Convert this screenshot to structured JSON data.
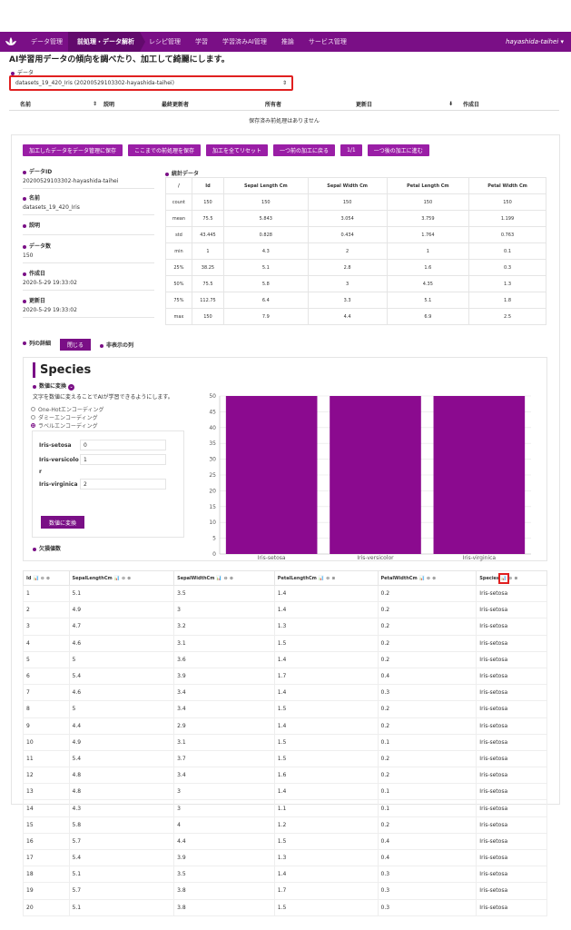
{
  "nav": {
    "items": [
      "データ管理",
      "前処理・データ解析",
      "レシピ管理",
      "学習",
      "学習済みAI管理",
      "推論",
      "サービス管理"
    ],
    "active_index": 1,
    "user": "hayashida-taihei",
    "brand_color": "#7a0f86"
  },
  "page": {
    "subtitle": "AI学習用データの傾向を調べたり、加工して綺麗にします。"
  },
  "data_select": {
    "label": "データ",
    "value": "datasets_19_420_Iris (20200529103302-hayashida-taihei)"
  },
  "saved_table": {
    "headers": [
      "名前",
      "説明",
      "最終更新者",
      "所有者",
      "更新日",
      "作成日"
    ],
    "empty_message": "保存済み前処理はありません"
  },
  "buttons": [
    "加工したデータをデータ管理に保存",
    "ここまでの前処理を保存",
    "加工を全てリセット",
    "一つ前の加工に戻る",
    "1/1",
    "一つ後の加工に進む"
  ],
  "meta": [
    {
      "k": "データID",
      "v": "20200529103302-hayashida-taihei"
    },
    {
      "k": "名前",
      "v": "datasets_19_420_Iris"
    },
    {
      "k": "説明",
      "v": ""
    },
    {
      "k": "データ数",
      "v": "150"
    },
    {
      "k": "作成日",
      "v": "2020-5-29 19:33:02"
    },
    {
      "k": "更新日",
      "v": "2020-5-29 19:33:02"
    }
  ],
  "stats": {
    "title": "統計データ",
    "headers": [
      "/",
      "Id",
      "Sepal Length Cm",
      "Sepal Width Cm",
      "Petal Length Cm",
      "Petal Width Cm"
    ],
    "rows": [
      [
        "count",
        "150",
        "150",
        "150",
        "150",
        "150"
      ],
      [
        "mean",
        "75.5",
        "5.843",
        "3.054",
        "3.759",
        "1.199"
      ],
      [
        "std",
        "43.445",
        "0.828",
        "0.434",
        "1.764",
        "0.763"
      ],
      [
        "min",
        "1",
        "4.3",
        "2",
        "1",
        "0.1"
      ],
      [
        "25%",
        "38.25",
        "5.1",
        "2.8",
        "1.6",
        "0.3"
      ],
      [
        "50%",
        "75.5",
        "5.8",
        "3",
        "4.35",
        "1.3"
      ],
      [
        "75%",
        "112.75",
        "6.4",
        "3.3",
        "5.1",
        "1.8"
      ],
      [
        "max",
        "150",
        "7.9",
        "4.4",
        "6.9",
        "2.5"
      ]
    ]
  },
  "column_detail": {
    "label": "列の詳細",
    "close": "閉じる",
    "hidden_label": "非表示の列"
  },
  "species": {
    "title": "Species",
    "conv_label": "数値に変換",
    "conv_desc": "文字を数値に変えることでAIが学習できるようにします。",
    "options": [
      "One-Hotエンコーディング",
      "ダミーエンコーディング",
      "ラベルエンコーディング"
    ],
    "selected_option": 2,
    "mapping": [
      {
        "name": "Iris-setosa",
        "value": "0"
      },
      {
        "name": "Iris-versicolor",
        "value": "1"
      },
      {
        "name": "Iris-virginica",
        "value": "2"
      }
    ],
    "convert_button": "数値に変換",
    "missing_label": "欠損値数"
  },
  "chart_data": {
    "type": "bar",
    "categories": [
      "Iris-setosa",
      "Iris-versicolor",
      "Iris-virginica"
    ],
    "values": [
      50,
      50,
      50
    ],
    "ylim": [
      0,
      50
    ],
    "yticks": [
      0,
      5,
      10,
      15,
      20,
      25,
      30,
      35,
      40,
      45,
      50
    ],
    "color": "#8b0a8f",
    "grid": true
  },
  "data_table": {
    "headers": [
      "Id",
      "SepalLengthCm",
      "SepalWidthCm",
      "PetalLengthCm",
      "PetalWidthCm",
      "Species"
    ],
    "rows": [
      [
        "1",
        "5.1",
        "3.5",
        "1.4",
        "0.2",
        "Iris-setosa"
      ],
      [
        "2",
        "4.9",
        "3",
        "1.4",
        "0.2",
        "Iris-setosa"
      ],
      [
        "3",
        "4.7",
        "3.2",
        "1.3",
        "0.2",
        "Iris-setosa"
      ],
      [
        "4",
        "4.6",
        "3.1",
        "1.5",
        "0.2",
        "Iris-setosa"
      ],
      [
        "5",
        "5",
        "3.6",
        "1.4",
        "0.2",
        "Iris-setosa"
      ],
      [
        "6",
        "5.4",
        "3.9",
        "1.7",
        "0.4",
        "Iris-setosa"
      ],
      [
        "7",
        "4.6",
        "3.4",
        "1.4",
        "0.3",
        "Iris-setosa"
      ],
      [
        "8",
        "5",
        "3.4",
        "1.5",
        "0.2",
        "Iris-setosa"
      ],
      [
        "9",
        "4.4",
        "2.9",
        "1.4",
        "0.2",
        "Iris-setosa"
      ],
      [
        "10",
        "4.9",
        "3.1",
        "1.5",
        "0.1",
        "Iris-setosa"
      ],
      [
        "11",
        "5.4",
        "3.7",
        "1.5",
        "0.2",
        "Iris-setosa"
      ],
      [
        "12",
        "4.8",
        "3.4",
        "1.6",
        "0.2",
        "Iris-setosa"
      ],
      [
        "13",
        "4.8",
        "3",
        "1.4",
        "0.1",
        "Iris-setosa"
      ],
      [
        "14",
        "4.3",
        "3",
        "1.1",
        "0.1",
        "Iris-setosa"
      ],
      [
        "15",
        "5.8",
        "4",
        "1.2",
        "0.2",
        "Iris-setosa"
      ],
      [
        "16",
        "5.7",
        "4.4",
        "1.5",
        "0.4",
        "Iris-setosa"
      ],
      [
        "17",
        "5.4",
        "3.9",
        "1.3",
        "0.4",
        "Iris-setosa"
      ],
      [
        "18",
        "5.1",
        "3.5",
        "1.4",
        "0.3",
        "Iris-setosa"
      ],
      [
        "19",
        "5.7",
        "3.8",
        "1.7",
        "0.3",
        "Iris-setosa"
      ],
      [
        "20",
        "5.1",
        "3.8",
        "1.5",
        "0.3",
        "Iris-setosa"
      ]
    ]
  }
}
